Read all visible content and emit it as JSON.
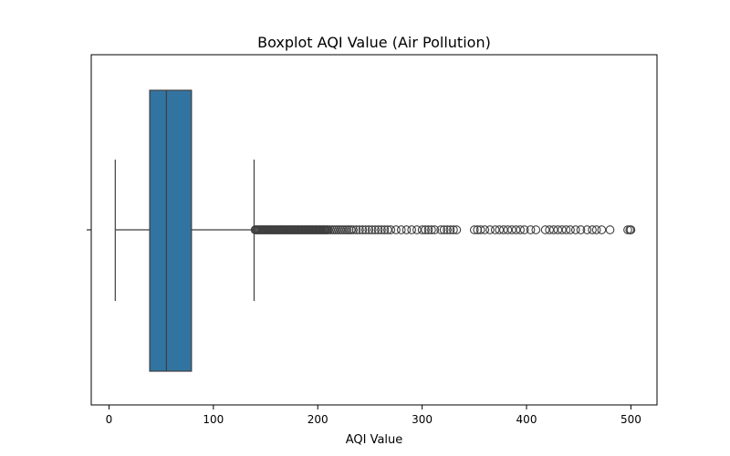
{
  "chart_data": {
    "type": "box",
    "title": "Boxplot AQI Value (Air Pollution)",
    "xlabel": "AQI Value",
    "ylabel": "",
    "orientation": "horizontal",
    "xlim": [
      -17,
      525
    ],
    "xticks": [
      0,
      100,
      200,
      300,
      400,
      500
    ],
    "grid": false,
    "box": {
      "whisker_low": 6,
      "q1": 39,
      "median": 55,
      "q3": 79,
      "whisker_high": 139,
      "color": "#3274a1",
      "line_color": "#3f3f3f",
      "outliers": [
        140,
        141,
        142,
        143,
        144,
        145,
        146,
        147,
        148,
        149,
        150,
        151,
        152,
        153,
        154,
        155,
        156,
        157,
        158,
        159,
        160,
        161,
        162,
        163,
        164,
        165,
        166,
        167,
        168,
        169,
        170,
        171,
        172,
        173,
        174,
        175,
        176,
        177,
        178,
        179,
        180,
        181,
        182,
        183,
        184,
        185,
        186,
        187,
        188,
        189,
        190,
        191,
        192,
        193,
        194,
        195,
        196,
        197,
        198,
        199,
        200,
        201,
        202,
        203,
        204,
        205,
        206,
        207,
        208,
        209,
        210,
        212,
        214,
        216,
        218,
        220,
        222,
        224,
        226,
        228,
        230,
        232,
        234,
        237,
        240,
        243,
        246,
        249,
        252,
        255,
        258,
        261,
        264,
        267,
        270,
        275,
        280,
        285,
        290,
        295,
        300,
        303,
        306,
        309,
        312,
        318,
        321,
        324,
        327,
        330,
        333,
        350,
        353,
        356,
        360,
        365,
        370,
        374,
        378,
        382,
        386,
        390,
        394,
        398,
        404,
        409,
        418,
        422,
        426,
        430,
        434,
        438,
        442,
        447,
        452,
        458,
        463,
        467,
        472,
        480,
        497,
        499,
        500
      ]
    }
  }
}
